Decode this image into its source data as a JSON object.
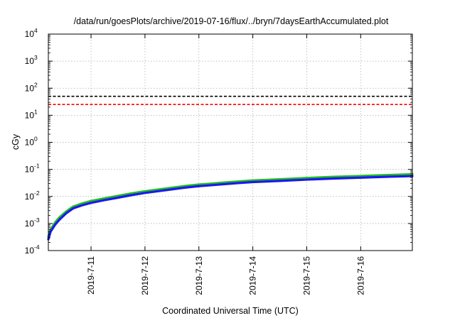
{
  "chart_data": {
    "type": "line",
    "title": "/data/run/goesPlots/archive/2019-07-16/flux/../bryn/7daysEarthAccumulated.plot",
    "xlabel": "Coordinated Universal Time (UTC)",
    "ylabel": "cGy",
    "yscale": "log",
    "xlim": [
      "2019-07-10T05:00",
      "2019-07-16T23:00"
    ],
    "ylim": [
      0.0001,
      10000
    ],
    "grid": true,
    "x_ticks": [
      "2019-7-11",
      "2019-7-12",
      "2019-7-13",
      "2019-7-14",
      "2019-7-15",
      "2019-7-16"
    ],
    "y_ticks": [
      {
        "value": 0.0001,
        "base": "10",
        "exp": "-4"
      },
      {
        "value": 0.001,
        "base": "10",
        "exp": "-3"
      },
      {
        "value": 0.01,
        "base": "10",
        "exp": "-2"
      },
      {
        "value": 0.1,
        "base": "10",
        "exp": "-1"
      },
      {
        "value": 1,
        "base": "10",
        "exp": "0"
      },
      {
        "value": 10,
        "base": "10",
        "exp": "1"
      },
      {
        "value": 100,
        "base": "10",
        "exp": "2"
      },
      {
        "value": 1000,
        "base": "10",
        "exp": "3"
      },
      {
        "value": 10000,
        "base": "10",
        "exp": "4"
      }
    ],
    "reference_lines": [
      {
        "value": 50,
        "color": "#000000",
        "style": "dashed"
      },
      {
        "value": 25,
        "color": "#ff0000",
        "style": "dashed"
      }
    ],
    "series": [
      {
        "color": "#22bb22",
        "x": [
          "2019-07-10T05:00",
          "2019-07-10T06:00",
          "2019-07-10T08:00",
          "2019-07-10T10:00",
          "2019-07-10T13:00",
          "2019-07-10T16:00",
          "2019-07-10T20:00",
          "2019-07-11T00:00",
          "2019-07-11T06:00",
          "2019-07-11T12:00",
          "2019-07-11T18:00",
          "2019-07-12T00:00",
          "2019-07-12T06:00",
          "2019-07-12T12:00",
          "2019-07-12T18:00",
          "2019-07-13T00:00",
          "2019-07-13T06:00",
          "2019-07-13T12:00",
          "2019-07-13T18:00",
          "2019-07-14T00:00",
          "2019-07-14T12:00",
          "2019-07-15T00:00",
          "2019-07-15T12:00",
          "2019-07-16T00:00",
          "2019-07-16T12:00",
          "2019-07-16T23:00"
        ],
        "y": [
          0.00032,
          0.0006,
          0.0011,
          0.0017,
          0.0028,
          0.0042,
          0.0055,
          0.0068,
          0.0085,
          0.0105,
          0.013,
          0.0155,
          0.018,
          0.021,
          0.0245,
          0.0275,
          0.03,
          0.033,
          0.036,
          0.039,
          0.043,
          0.048,
          0.053,
          0.057,
          0.062,
          0.066
        ]
      },
      {
        "color": "#1a1aee",
        "x": [
          "2019-07-10T05:00",
          "2019-07-10T06:00",
          "2019-07-10T08:00",
          "2019-07-10T10:00",
          "2019-07-10T13:00",
          "2019-07-10T16:00",
          "2019-07-10T20:00",
          "2019-07-11T00:00",
          "2019-07-11T06:00",
          "2019-07-11T12:00",
          "2019-07-11T18:00",
          "2019-07-12T00:00",
          "2019-07-12T06:00",
          "2019-07-12T12:00",
          "2019-07-12T18:00",
          "2019-07-13T00:00",
          "2019-07-13T06:00",
          "2019-07-13T12:00",
          "2019-07-13T18:00",
          "2019-07-14T00:00",
          "2019-07-14T12:00",
          "2019-07-15T00:00",
          "2019-07-15T12:00",
          "2019-07-16T00:00",
          "2019-07-16T12:00",
          "2019-07-16T23:00"
        ],
        "y": [
          0.00026,
          0.0005,
          0.0009,
          0.0014,
          0.0024,
          0.0036,
          0.0047,
          0.0058,
          0.0073,
          0.009,
          0.0112,
          0.0135,
          0.0157,
          0.0183,
          0.0213,
          0.024,
          0.0262,
          0.0288,
          0.0314,
          0.034,
          0.0375,
          0.0418,
          0.046,
          0.0495,
          0.0535,
          0.0565
        ]
      }
    ]
  }
}
